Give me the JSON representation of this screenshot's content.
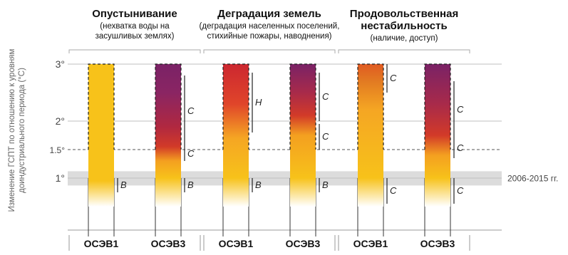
{
  "chart_data": {
    "type": "bar",
    "yaxis_title_lines": [
      "Изменение ГСПТ по отношению к уровням",
      "доиндустриального периода (°C)"
    ],
    "y_ticks": [
      {
        "value": 3,
        "label": "3°"
      },
      {
        "value": 2,
        "label": "2°"
      },
      {
        "value": 1.5,
        "label": "1.5°"
      },
      {
        "value": 1,
        "label": "1°"
      }
    ],
    "ylim": [
      0,
      3
    ],
    "band": {
      "from": 0.87,
      "to": 1.12,
      "label": "2006-2015 гг."
    },
    "groups": [
      {
        "title_lines": [
          "Опустынивание"
        ],
        "sub_lines": [
          "(нехватка воды на",
          "засушливых землях)"
        ],
        "bars": [
          {
            "scenario": "ОСЭВ1",
            "colors": [
              [
                0.65,
                "#ffffff"
              ],
              [
                0.95,
                "#f7c21a"
              ],
              [
                3.0,
                "#f7c21a"
              ]
            ],
            "markers": [
              {
                "from": 0.75,
                "to": 1.0,
                "letter": "B"
              }
            ]
          },
          {
            "scenario": "ОСЭВ3",
            "colors": [
              [
                0.65,
                "#ffffff"
              ],
              [
                1.0,
                "#f7c21a"
              ],
              [
                1.3,
                "#f4a020"
              ],
              [
                1.55,
                "#d23a28"
              ],
              [
                1.9,
                "#b02840"
              ],
              [
                2.5,
                "#8a2563"
              ],
              [
                3.0,
                "#7a2266"
              ]
            ],
            "markers": [
              {
                "from": 0.75,
                "to": 1.0,
                "letter": "B"
              },
              {
                "from": 1.3,
                "to": 1.55,
                "letter": "C"
              },
              {
                "from": 1.55,
                "to": 2.8,
                "letter": "C"
              }
            ]
          }
        ]
      },
      {
        "title_lines": [
          "Деградация земель"
        ],
        "sub_lines": [
          "(деградация населенных поселений,",
          "стихийные пожары, наводнения)"
        ],
        "bars": [
          {
            "scenario": "ОСЭВ1",
            "colors": [
              [
                0.65,
                "#ffffff"
              ],
              [
                1.0,
                "#f7c21a"
              ],
              [
                1.7,
                "#f5a623"
              ],
              [
                2.3,
                "#e0452a"
              ],
              [
                3.0,
                "#cc2730"
              ]
            ],
            "markers": [
              {
                "from": 0.75,
                "to": 1.0,
                "letter": "B"
              },
              {
                "from": 1.8,
                "to": 2.85,
                "letter": "H"
              }
            ]
          },
          {
            "scenario": "ОСЭВ3",
            "colors": [
              [
                0.65,
                "#ffffff"
              ],
              [
                1.0,
                "#f7c21a"
              ],
              [
                1.75,
                "#f4a020"
              ],
              [
                2.1,
                "#d23a28"
              ],
              [
                2.5,
                "#a82a4a"
              ],
              [
                3.0,
                "#7a2266"
              ]
            ],
            "markers": [
              {
                "from": 0.75,
                "to": 1.0,
                "letter": "B"
              },
              {
                "from": 1.5,
                "to": 1.95,
                "letter": "C"
              },
              {
                "from": 2.0,
                "to": 2.85,
                "letter": "C"
              }
            ]
          }
        ]
      },
      {
        "title_lines": [
          "Продовольственная",
          "нестабильность"
        ],
        "sub_lines": [
          "(наличие, доступ)"
        ],
        "bars": [
          {
            "scenario": "ОСЭВ1",
            "colors": [
              [
                0.6,
                "#ffffff"
              ],
              [
                1.0,
                "#f7c21a"
              ],
              [
                2.2,
                "#f5a623"
              ],
              [
                2.7,
                "#e27a22"
              ],
              [
                3.0,
                "#e05a22"
              ]
            ],
            "markers": [
              {
                "from": 0.55,
                "to": 1.0,
                "letter": "C"
              },
              {
                "from": 2.5,
                "to": 3.0,
                "letter": "C"
              }
            ]
          },
          {
            "scenario": "ОСЭВ3",
            "colors": [
              [
                0.6,
                "#ffffff"
              ],
              [
                1.0,
                "#f7c21a"
              ],
              [
                1.4,
                "#f4a020"
              ],
              [
                1.75,
                "#d23a28"
              ],
              [
                2.3,
                "#a82a4a"
              ],
              [
                3.0,
                "#7a2266"
              ]
            ],
            "markers": [
              {
                "from": 0.55,
                "to": 1.0,
                "letter": "C"
              },
              {
                "from": 1.35,
                "to": 1.7,
                "letter": "C"
              },
              {
                "from": 1.7,
                "to": 2.7,
                "letter": "C"
              }
            ]
          }
        ]
      }
    ]
  },
  "colors": {
    "band": "#dcdcdc",
    "grid": "#bfbfbf",
    "axis": "#999999",
    "text": "#111111"
  }
}
